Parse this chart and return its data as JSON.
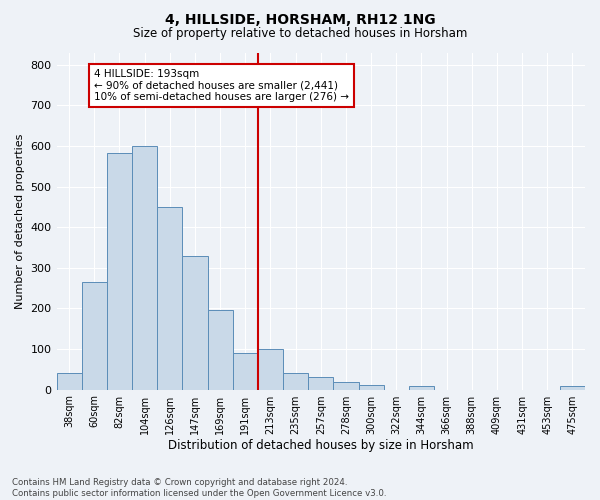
{
  "title": "4, HILLSIDE, HORSHAM, RH12 1NG",
  "subtitle": "Size of property relative to detached houses in Horsham",
  "xlabel": "Distribution of detached houses by size in Horsham",
  "ylabel": "Number of detached properties",
  "bar_labels": [
    "38sqm",
    "60sqm",
    "82sqm",
    "104sqm",
    "126sqm",
    "147sqm",
    "169sqm",
    "191sqm",
    "213sqm",
    "235sqm",
    "257sqm",
    "278sqm",
    "300sqm",
    "322sqm",
    "344sqm",
    "366sqm",
    "388sqm",
    "409sqm",
    "431sqm",
    "453sqm",
    "475sqm"
  ],
  "bar_heights": [
    40,
    265,
    583,
    600,
    450,
    330,
    195,
    90,
    100,
    40,
    32,
    18,
    12,
    0,
    8,
    0,
    0,
    0,
    0,
    0,
    8
  ],
  "bar_color": "#c9d9e8",
  "bar_edge_color": "#5b8db8",
  "marker_index": 7,
  "marker_color": "#cc0000",
  "annotation_line1": "4 HILLSIDE: 193sqm",
  "annotation_line2": "← 90% of detached houses are smaller (2,441)",
  "annotation_line3": "10% of semi-detached houses are larger (276) →",
  "ylim": [
    0,
    830
  ],
  "yticks": [
    0,
    100,
    200,
    300,
    400,
    500,
    600,
    700,
    800
  ],
  "footer_line1": "Contains HM Land Registry data © Crown copyright and database right 2024.",
  "footer_line2": "Contains public sector information licensed under the Open Government Licence v3.0.",
  "bg_color": "#eef2f7"
}
